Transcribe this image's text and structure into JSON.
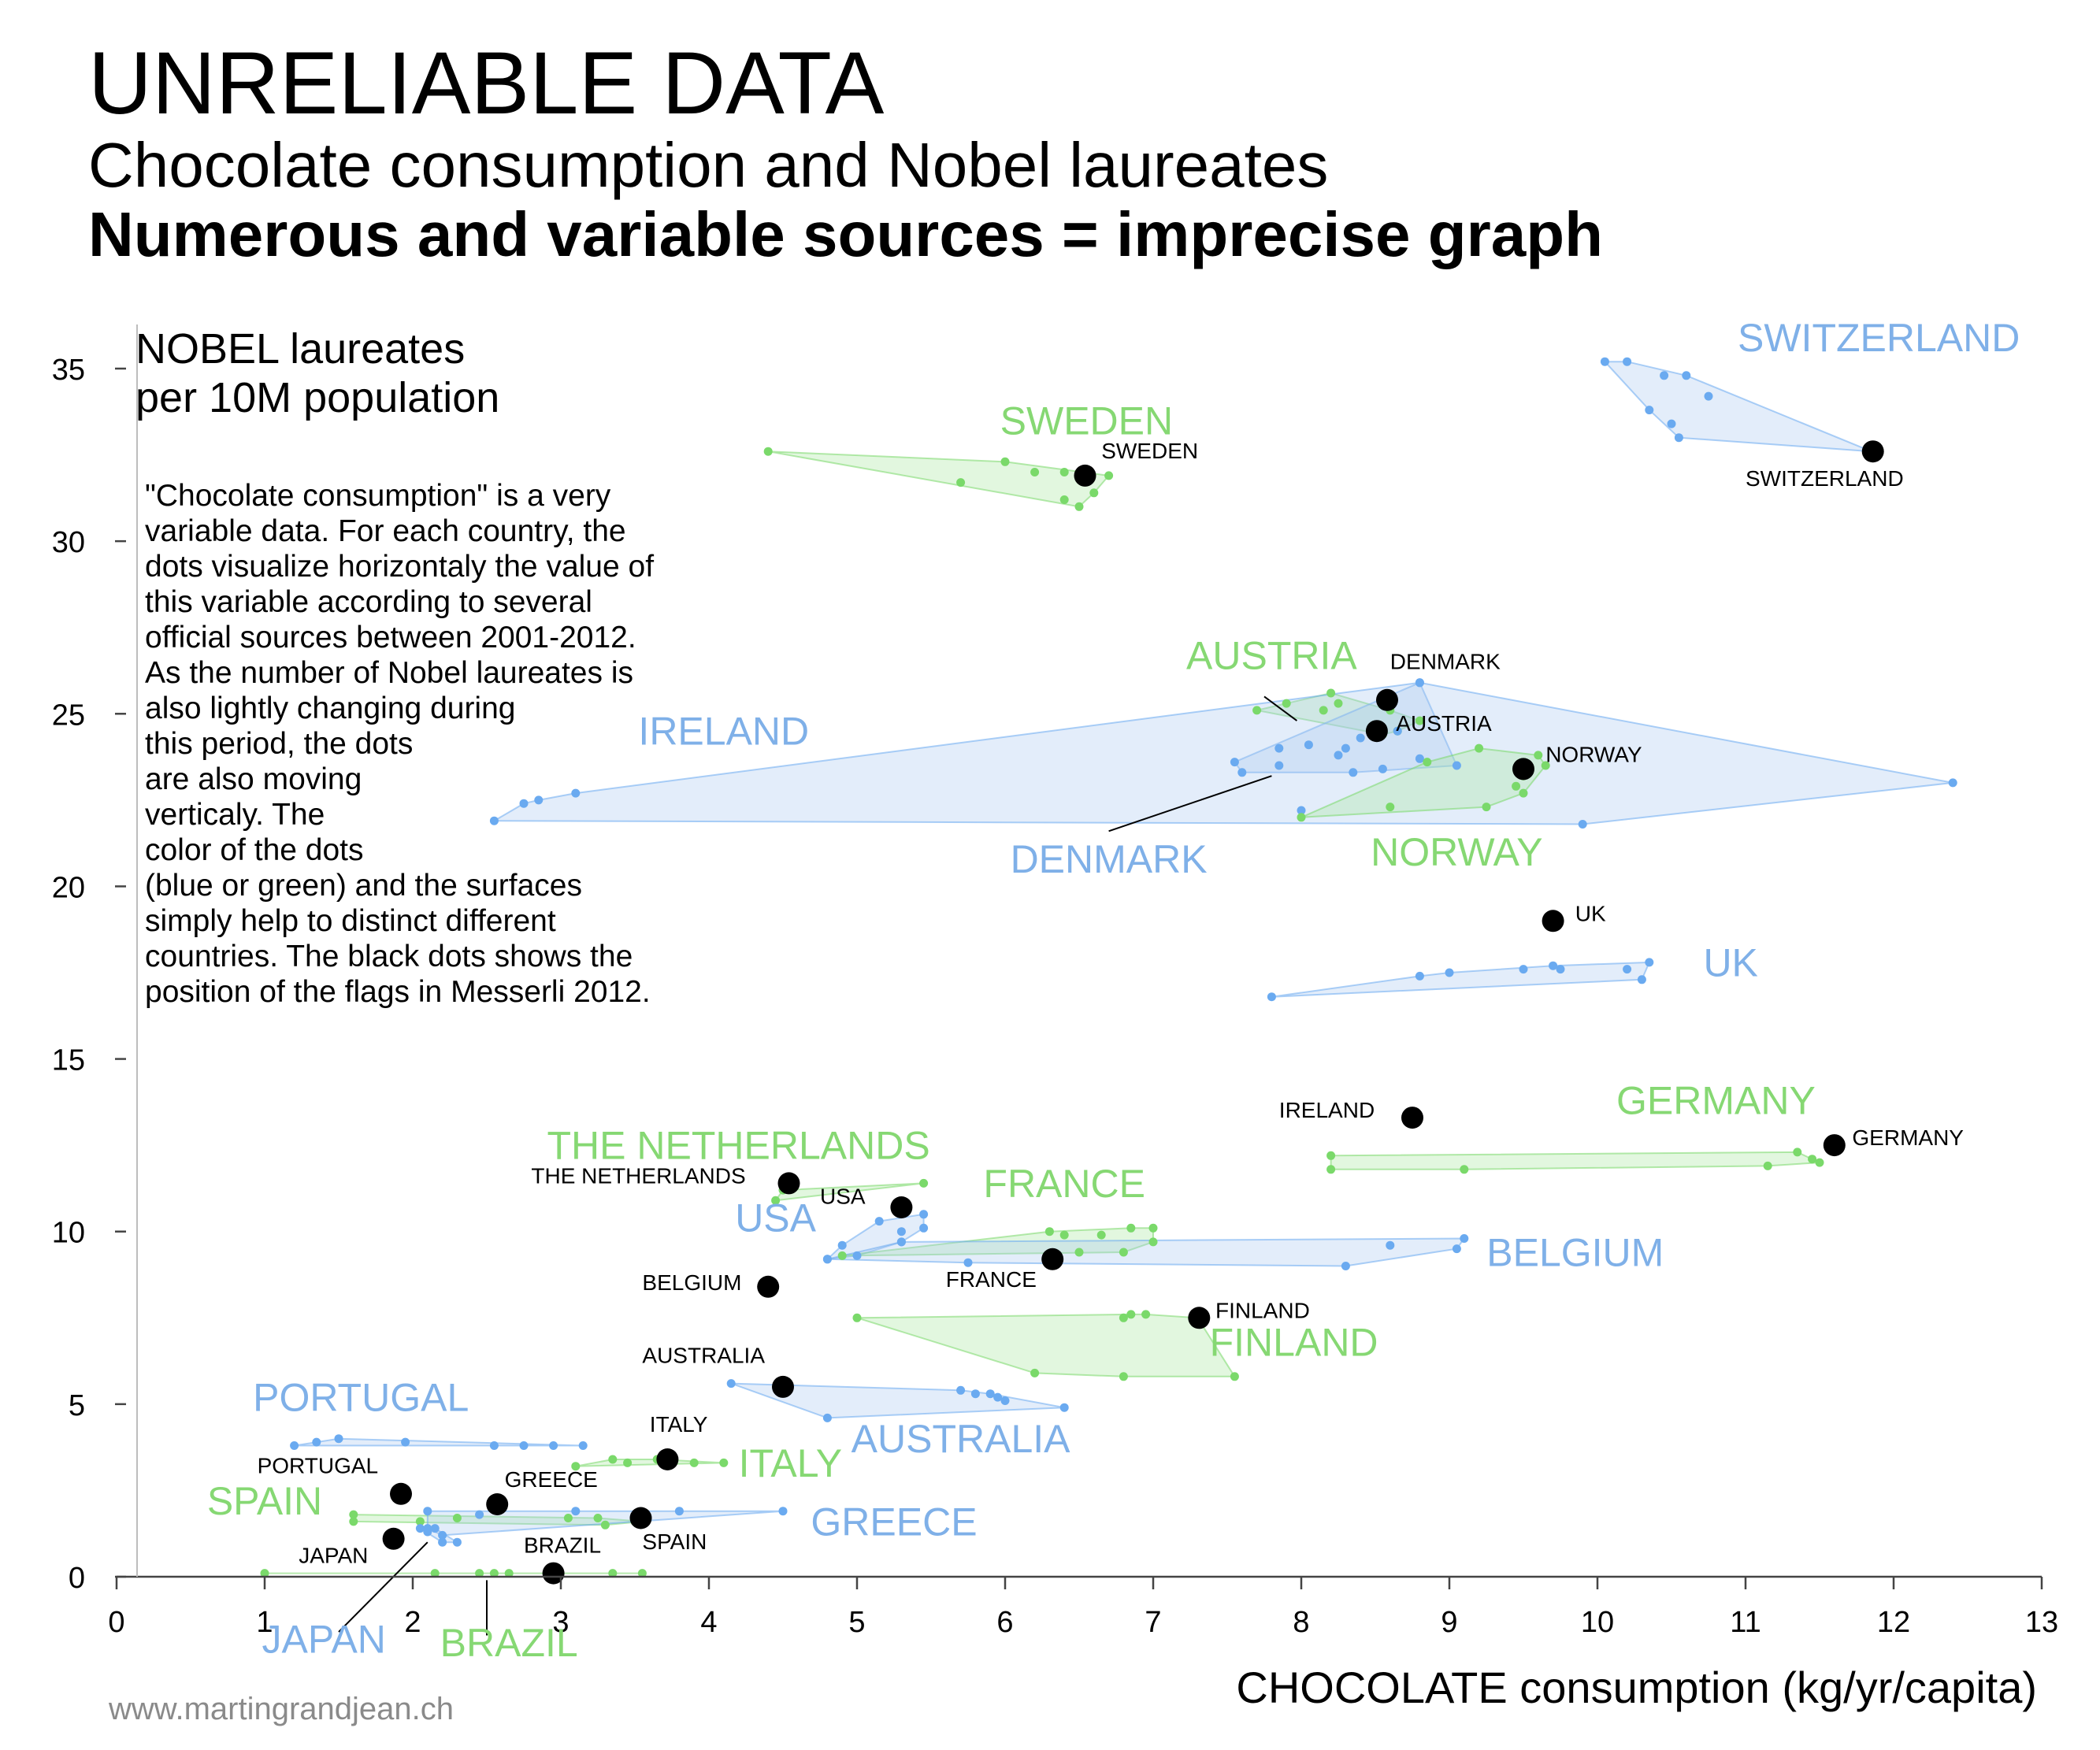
{
  "header": {
    "title": "UNRELIABLE DATA",
    "subtitle": "Chocolate consumption and Nobel laureates",
    "subtitle_bold": "Numerous and variable sources = imprecise graph"
  },
  "y_axis_title": [
    "NOBEL laureates",
    "per 10M population"
  ],
  "x_axis_title": "CHOCOLATE consumption (kg/yr/capita)",
  "note_lines": [
    "\"Chocolate consumption\" is a very",
    "variable data. For each country, the",
    "dots visualize horizontaly the value of",
    "this variable according to several",
    "official sources between 2001-2012.",
    "As the number of Nobel laureates is",
    "also lightly changing during",
    "this period, the dots",
    "are also  moving",
    "verticaly. The",
    "color of the dots",
    "(blue or green) and the surfaces",
    "simply help to distinct different",
    "countries. The black dots shows the",
    "position of the flags in Messerli 2012."
  ],
  "credit": "www.martingrandjean.ch",
  "colors": {
    "blue": "#6aaaf0",
    "green": "#7ad96a",
    "blue_fill": "#a8c8ee",
    "green_fill": "#a6e69a",
    "blue_label": "#7fb0e8",
    "green_label": "#86d873",
    "flag": "#000000",
    "axis": "#444444"
  },
  "chart_data": {
    "type": "scatter",
    "xlim": [
      0,
      13
    ],
    "ylim": [
      0,
      35
    ],
    "x_ticks": [
      0,
      1,
      2,
      3,
      4,
      5,
      6,
      7,
      8,
      9,
      10,
      11,
      12,
      13
    ],
    "y_ticks": [
      0,
      5,
      10,
      15,
      20,
      25,
      30,
      35
    ],
    "grid": false,
    "countries": [
      {
        "name": "SWITZERLAND",
        "color": "blue",
        "points": [
          [
            10.05,
            35.2
          ],
          [
            10.2,
            35.2
          ],
          [
            10.45,
            34.8
          ],
          [
            10.6,
            34.8
          ],
          [
            10.75,
            34.2
          ],
          [
            10.35,
            33.8
          ],
          [
            10.5,
            33.4
          ],
          [
            10.55,
            33.0
          ],
          [
            11.85,
            32.6
          ]
        ],
        "flag": [
          11.86,
          32.6
        ],
        "label_x": 11.9,
        "label_y": 35.5
      },
      {
        "name": "SWEDEN",
        "color": "green",
        "points": [
          [
            4.4,
            32.6
          ],
          [
            6.0,
            32.3
          ],
          [
            6.2,
            32.0
          ],
          [
            6.4,
            32.0
          ],
          [
            6.7,
            31.9
          ],
          [
            5.7,
            31.7
          ],
          [
            6.6,
            31.4
          ],
          [
            6.4,
            31.2
          ],
          [
            6.5,
            31.0
          ]
        ],
        "flag": [
          6.54,
          31.9
        ],
        "label_x": 6.55,
        "label_y": 33.1
      },
      {
        "name": "AUSTRIA",
        "color": "green",
        "points": [
          [
            7.7,
            25.1
          ],
          [
            7.9,
            25.3
          ],
          [
            8.2,
            25.6
          ],
          [
            8.25,
            25.3
          ],
          [
            8.15,
            25.1
          ],
          [
            8.6,
            25.1
          ],
          [
            8.8,
            24.8
          ],
          [
            8.65,
            24.5
          ],
          [
            8.55,
            24.4
          ]
        ],
        "flag": [
          8.51,
          24.5
        ],
        "label_x": 7.8,
        "label_y": 26.3
      },
      {
        "name": "DENMARK",
        "color": "blue",
        "points": [
          [
            8.8,
            25.9
          ],
          [
            8.65,
            24.5
          ],
          [
            8.4,
            24.3
          ],
          [
            8.3,
            24.0
          ],
          [
            7.85,
            24.0
          ],
          [
            7.55,
            23.6
          ],
          [
            7.6,
            23.3
          ],
          [
            7.85,
            23.5
          ],
          [
            8.05,
            24.1
          ],
          [
            8.25,
            23.8
          ],
          [
            8.35,
            23.3
          ],
          [
            8.55,
            23.4
          ],
          [
            8.8,
            23.7
          ],
          [
            9.05,
            23.5
          ]
        ],
        "flag": [
          8.58,
          25.4
        ],
        "label_x": 6.7,
        "label_y": 20.4
      },
      {
        "name": "IRELAND",
        "color": "blue",
        "points": [
          [
            2.55,
            21.9
          ],
          [
            2.75,
            22.4
          ],
          [
            2.85,
            22.5
          ],
          [
            3.1,
            22.7
          ],
          [
            8.8,
            25.9
          ],
          [
            12.4,
            23.0
          ],
          [
            9.9,
            21.8
          ],
          [
            8.0,
            22.2
          ]
        ],
        "flag": [
          8.75,
          13.3
        ],
        "label_x": 4.1,
        "label_y": 24.1
      },
      {
        "name": "NORWAY",
        "color": "green",
        "points": [
          [
            8.0,
            22.0
          ],
          [
            8.6,
            22.3
          ],
          [
            8.85,
            23.6
          ],
          [
            9.2,
            24.0
          ],
          [
            9.6,
            23.8
          ],
          [
            9.65,
            23.5
          ],
          [
            9.5,
            23.2
          ],
          [
            9.45,
            22.9
          ],
          [
            9.5,
            22.7
          ],
          [
            9.25,
            22.3
          ]
        ],
        "flag": [
          9.5,
          23.4
        ],
        "label_x": 9.05,
        "label_y": 20.6
      },
      {
        "name": "UK",
        "color": "blue",
        "points": [
          [
            7.8,
            16.8
          ],
          [
            8.8,
            17.4
          ],
          [
            9.0,
            17.5
          ],
          [
            9.5,
            17.6
          ],
          [
            9.7,
            17.7
          ],
          [
            9.75,
            17.6
          ],
          [
            10.2,
            17.6
          ],
          [
            10.35,
            17.8
          ],
          [
            10.3,
            17.3
          ]
        ],
        "flag": [
          9.7,
          19.0
        ],
        "label_x": 10.9,
        "label_y": 17.4
      },
      {
        "name": "GERMANY",
        "color": "green",
        "points": [
          [
            8.2,
            12.2
          ],
          [
            8.2,
            11.8
          ],
          [
            9.1,
            11.8
          ],
          [
            11.15,
            11.9
          ],
          [
            11.35,
            12.3
          ],
          [
            11.45,
            12.1
          ],
          [
            11.5,
            12.0
          ]
        ],
        "flag": [
          11.6,
          12.5
        ],
        "label_x": 10.8,
        "label_y": 13.4
      },
      {
        "name": "THE NETHERLANDS",
        "color": "green",
        "points": [
          [
            4.5,
            11.2
          ],
          [
            4.45,
            10.9
          ],
          [
            5.45,
            11.4
          ]
        ],
        "flag": [
          4.54,
          11.4
        ],
        "label_x": 4.2,
        "label_y": 12.1
      },
      {
        "name": "USA",
        "color": "blue",
        "points": [
          [
            4.8,
            9.2
          ],
          [
            4.9,
            9.6
          ],
          [
            5.15,
            10.3
          ],
          [
            5.3,
            10.0
          ],
          [
            5.3,
            9.7
          ],
          [
            5.45,
            10.5
          ],
          [
            5.45,
            10.1
          ],
          [
            5.0,
            9.3
          ]
        ],
        "flag": [
          5.3,
          10.7
        ],
        "label_x": 4.45,
        "label_y": 10.0
      },
      {
        "name": "FRANCE",
        "color": "green",
        "points": [
          [
            4.9,
            9.3
          ],
          [
            6.3,
            10.0
          ],
          [
            6.4,
            9.9
          ],
          [
            6.65,
            9.9
          ],
          [
            6.85,
            10.1
          ],
          [
            7.0,
            10.1
          ],
          [
            7.0,
            9.7
          ],
          [
            6.5,
            9.4
          ],
          [
            6.8,
            9.4
          ]
        ],
        "flag": [
          6.32,
          9.2
        ],
        "label_x": 6.4,
        "label_y": 11.0
      },
      {
        "name": "BELGIUM",
        "color": "blue",
        "points": [
          [
            4.8,
            9.2
          ],
          [
            5.3,
            9.7
          ],
          [
            5.75,
            9.1
          ],
          [
            8.3,
            9.0
          ],
          [
            8.6,
            9.6
          ],
          [
            9.05,
            9.5
          ],
          [
            9.1,
            9.8
          ]
        ],
        "flag": [
          4.4,
          8.4
        ],
        "label_x": 9.85,
        "label_y": 9.0
      },
      {
        "name": "FINLAND",
        "color": "green",
        "points": [
          [
            5.0,
            7.5
          ],
          [
            6.8,
            7.5
          ],
          [
            6.85,
            7.6
          ],
          [
            6.95,
            7.6
          ],
          [
            7.3,
            7.5
          ],
          [
            7.55,
            5.8
          ],
          [
            6.8,
            5.8
          ],
          [
            6.2,
            5.9
          ]
        ],
        "flag": [
          7.31,
          7.5
        ],
        "label_x": 7.95,
        "label_y": 6.4
      },
      {
        "name": "AUSTRALIA",
        "color": "blue",
        "points": [
          [
            4.15,
            5.6
          ],
          [
            4.8,
            4.6
          ],
          [
            6.4,
            4.9
          ],
          [
            5.8,
            5.3
          ],
          [
            5.9,
            5.3
          ],
          [
            5.95,
            5.2
          ],
          [
            6.0,
            5.1
          ],
          [
            5.7,
            5.4
          ]
        ],
        "flag": [
          4.5,
          5.5
        ],
        "label_x": 5.7,
        "label_y": 3.6
      },
      {
        "name": "PORTUGAL",
        "color": "blue",
        "points": [
          [
            1.2,
            3.8
          ],
          [
            1.35,
            3.9
          ],
          [
            1.5,
            4.0
          ],
          [
            1.95,
            3.9
          ],
          [
            2.55,
            3.8
          ],
          [
            2.75,
            3.8
          ],
          [
            2.95,
            3.8
          ],
          [
            3.15,
            3.8
          ]
        ],
        "flag": [
          1.92,
          2.4
        ],
        "label_x": 1.65,
        "label_y": 4.8
      },
      {
        "name": "ITALY",
        "color": "green",
        "points": [
          [
            3.1,
            3.2
          ],
          [
            3.35,
            3.4
          ],
          [
            3.45,
            3.3
          ],
          [
            3.65,
            3.4
          ],
          [
            3.9,
            3.3
          ],
          [
            4.1,
            3.3
          ]
        ],
        "flag": [
          3.72,
          3.4
        ],
        "label_x": 4.55,
        "label_y": 2.9
      },
      {
        "name": "SPAIN",
        "color": "green",
        "points": [
          [
            1.6,
            1.8
          ],
          [
            1.6,
            1.6
          ],
          [
            2.05,
            1.6
          ],
          [
            2.3,
            1.7
          ],
          [
            3.05,
            1.7
          ],
          [
            3.25,
            1.7
          ],
          [
            3.3,
            1.5
          ],
          [
            3.5,
            1.6
          ],
          [
            3.55,
            1.6
          ]
        ],
        "flag": [
          3.54,
          1.7
        ],
        "label_x": 1.0,
        "label_y": 1.8
      },
      {
        "name": "GREECE",
        "color": "blue",
        "points": [
          [
            2.1,
            1.9
          ],
          [
            2.45,
            1.8
          ],
          [
            3.1,
            1.9
          ],
          [
            3.8,
            1.9
          ],
          [
            4.5,
            1.9
          ],
          [
            2.1,
            1.4
          ],
          [
            2.2,
            1.2
          ]
        ],
        "flag": [
          2.57,
          2.1
        ],
        "label_x": 5.25,
        "label_y": 1.2
      },
      {
        "name": "JAPAN",
        "color": "blue",
        "points": [
          [
            2.05,
            1.4
          ],
          [
            2.1,
            1.3
          ],
          [
            2.15,
            1.4
          ],
          [
            2.2,
            1.0
          ],
          [
            2.3,
            1.0
          ]
        ],
        "flag": [
          1.87,
          1.1
        ],
        "label_x": 1.4,
        "label_y": -2.2
      },
      {
        "name": "BRAZIL",
        "color": "green",
        "points": [
          [
            1.0,
            0.1
          ],
          [
            2.15,
            0.1
          ],
          [
            2.45,
            0.1
          ],
          [
            2.55,
            0.1
          ],
          [
            2.65,
            0.1
          ],
          [
            3.35,
            0.1
          ],
          [
            3.55,
            0.1
          ]
        ],
        "flag": [
          2.95,
          0.1
        ],
        "label_x": 2.65,
        "label_y": -2.3
      }
    ],
    "flag_labels": [
      {
        "text": "SWITZERLAND",
        "x": 11.0,
        "y": 31.6
      },
      {
        "text": "SWEDEN",
        "x": 6.65,
        "y": 32.4
      },
      {
        "text": "DENMARK",
        "x": 8.6,
        "y": 26.3
      },
      {
        "text": "AUSTRIA",
        "x": 8.64,
        "y": 24.5
      },
      {
        "text": "NORWAY",
        "x": 9.65,
        "y": 23.6
      },
      {
        "text": "UK",
        "x": 9.85,
        "y": 19.0
      },
      {
        "text": "IRELAND",
        "x": 7.85,
        "y": 13.3
      },
      {
        "text": "GERMANY",
        "x": 11.72,
        "y": 12.5
      },
      {
        "text": "THE NETHERLANDS",
        "x": 2.8,
        "y": 11.4
      },
      {
        "text": "USA",
        "x": 4.75,
        "y": 10.8
      },
      {
        "text": "FRANCE",
        "x": 5.6,
        "y": 8.4
      },
      {
        "text": "BELGIUM",
        "x": 3.55,
        "y": 8.3
      },
      {
        "text": "FINLAND",
        "x": 7.42,
        "y": 7.5
      },
      {
        "text": "AUSTRALIA",
        "x": 3.55,
        "y": 6.2
      },
      {
        "text": "ITALY",
        "x": 3.6,
        "y": 4.2
      },
      {
        "text": "PORTUGAL",
        "x": 0.95,
        "y": 3.0
      },
      {
        "text": "GREECE",
        "x": 2.62,
        "y": 2.6
      },
      {
        "text": "SPAIN",
        "x": 3.55,
        "y": 0.8
      },
      {
        "text": "JAPAN",
        "x": 1.23,
        "y": 0.4
      },
      {
        "text": "BRAZIL",
        "x": 2.75,
        "y": 0.7
      }
    ],
    "leader_lines": [
      {
        "from": [
          7.75,
          25.5
        ],
        "to": [
          7.97,
          24.8
        ]
      },
      {
        "from": [
          6.7,
          21.6
        ],
        "to": [
          7.8,
          23.2
        ]
      },
      {
        "from": [
          1.5,
          -1.6
        ],
        "to": [
          2.1,
          1.0
        ]
      },
      {
        "from": [
          2.5,
          -1.7
        ],
        "to": [
          2.5,
          -0.1
        ]
      }
    ]
  }
}
